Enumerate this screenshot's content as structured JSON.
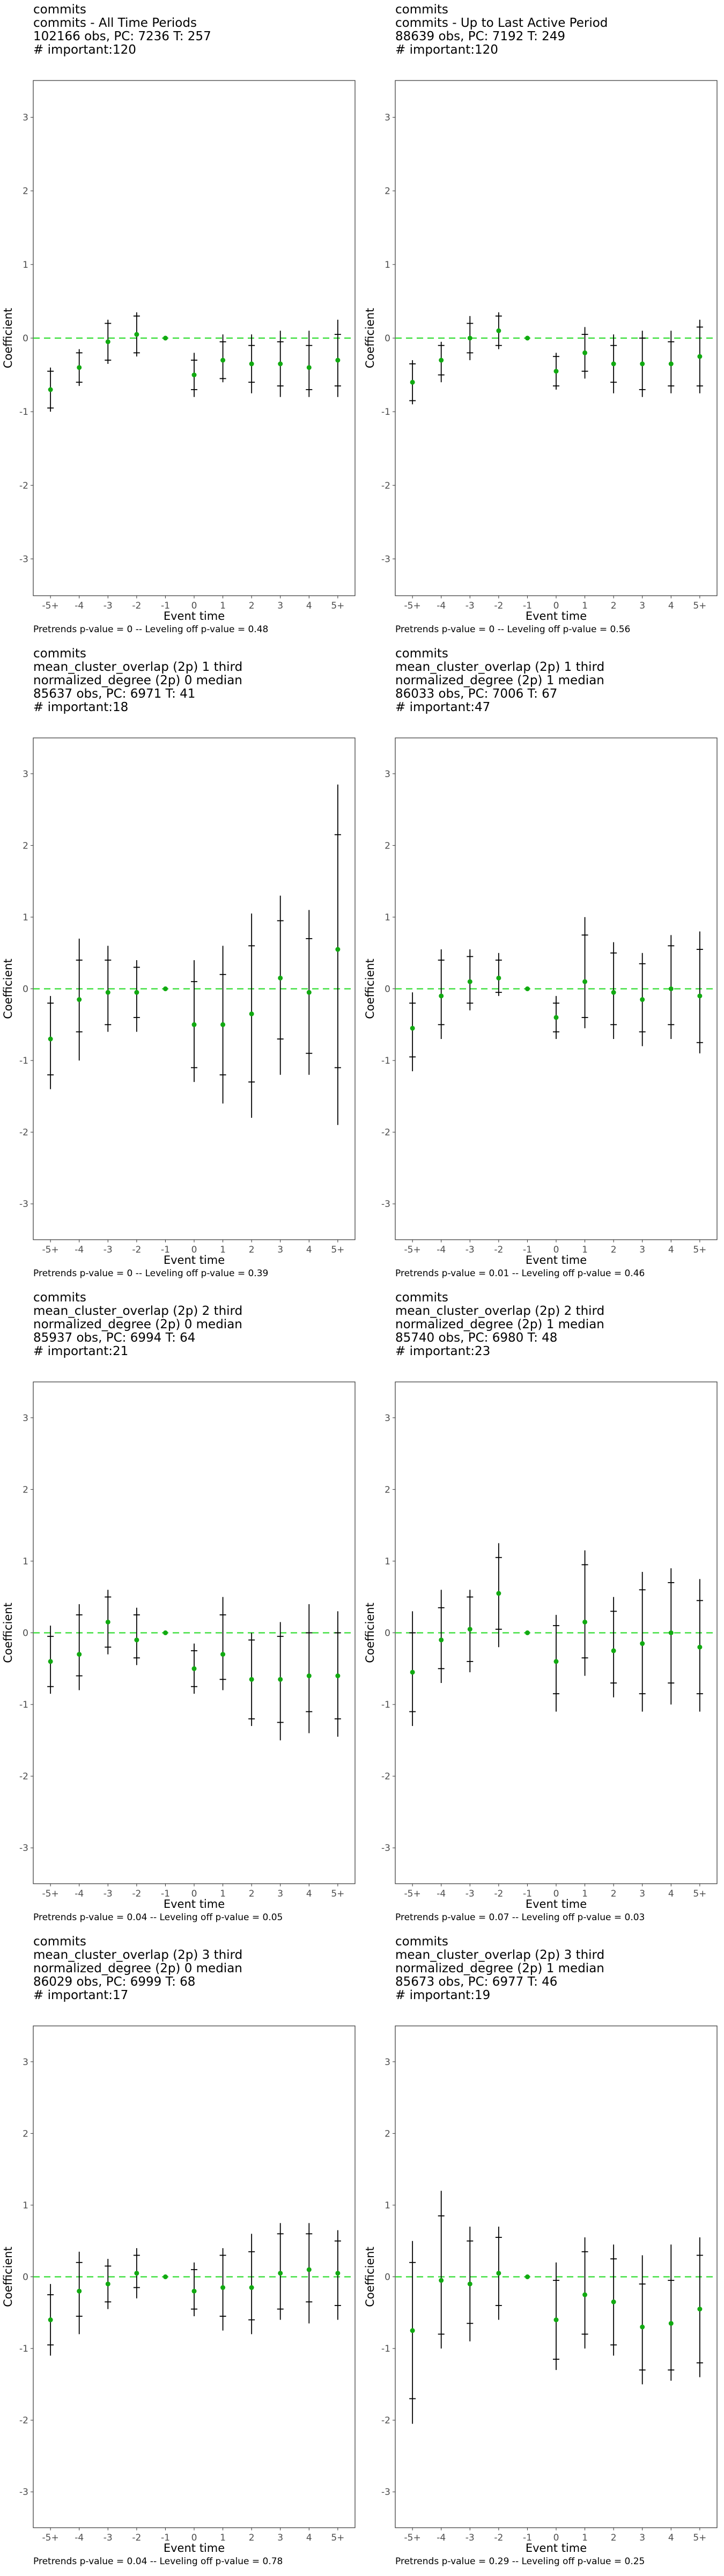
{
  "colors": {
    "refline": "#33dd33",
    "point": "#11aa11",
    "bar": "#000000",
    "frame": "#333333"
  },
  "xlabel": "Event time",
  "ylabel": "Coefficient",
  "chart_data": [
    {
      "type": "scatter",
      "title_lines": [
        "commits",
        "commits - All Time Periods",
        "102166 obs, PC: 7236 T: 257",
        "# important:120"
      ],
      "footer": "Pretrends p-value = 0 -- Leveling off p-value = 0.48",
      "categories": [
        "-5+",
        "-4",
        "-3",
        "-2",
        "-1",
        "0",
        "1",
        "2",
        "3",
        "4",
        "5+"
      ],
      "coef": [
        -0.7,
        -0.4,
        -0.05,
        0.05,
        0,
        -0.5,
        -0.3,
        -0.35,
        -0.35,
        -0.4,
        -0.3
      ],
      "ci90": [
        [
          -0.95,
          -0.45
        ],
        [
          -0.6,
          -0.2
        ],
        [
          -0.3,
          0.2
        ],
        [
          -0.2,
          0.3
        ],
        [
          0,
          0
        ],
        [
          -0.7,
          -0.3
        ],
        [
          -0.55,
          -0.05
        ],
        [
          -0.6,
          -0.1
        ],
        [
          -0.65,
          -0.05
        ],
        [
          -0.7,
          -0.1
        ],
        [
          -0.65,
          0.05
        ]
      ],
      "ci95": [
        [
          -1.0,
          -0.4
        ],
        [
          -0.65,
          -0.15
        ],
        [
          -0.35,
          0.25
        ],
        [
          -0.25,
          0.35
        ],
        [
          0,
          0
        ],
        [
          -0.8,
          -0.2
        ],
        [
          -0.6,
          0.05
        ],
        [
          -0.75,
          0.05
        ],
        [
          -0.8,
          0.1
        ],
        [
          -0.8,
          0.1
        ],
        [
          -0.8,
          0.25
        ]
      ],
      "ylim": [
        -3.5,
        3.5
      ],
      "yticks": [
        -3,
        -2,
        -1,
        0,
        1,
        2,
        3
      ]
    },
    {
      "type": "scatter",
      "title_lines": [
        "commits",
        "commits - Up to Last Active Period",
        "88639 obs, PC: 7192 T: 249",
        "# important:120"
      ],
      "footer": "Pretrends p-value = 0 -- Leveling off p-value = 0.56",
      "categories": [
        "-5+",
        "-4",
        "-3",
        "-2",
        "-1",
        "0",
        "1",
        "2",
        "3",
        "4",
        "5+"
      ],
      "coef": [
        -0.6,
        -0.3,
        0,
        0.1,
        0,
        -0.45,
        -0.2,
        -0.35,
        -0.35,
        -0.35,
        -0.25
      ],
      "ci90": [
        [
          -0.85,
          -0.35
        ],
        [
          -0.5,
          -0.1
        ],
        [
          -0.2,
          0.2
        ],
        [
          -0.1,
          0.3
        ],
        [
          0,
          0
        ],
        [
          -0.65,
          -0.25
        ],
        [
          -0.45,
          0.05
        ],
        [
          -0.6,
          -0.1
        ],
        [
          -0.7,
          0
        ],
        [
          -0.65,
          -0.05
        ],
        [
          -0.65,
          0.15
        ]
      ],
      "ci95": [
        [
          -0.9,
          -0.3
        ],
        [
          -0.6,
          -0.05
        ],
        [
          -0.3,
          0.3
        ],
        [
          -0.15,
          0.35
        ],
        [
          0,
          0
        ],
        [
          -0.7,
          -0.2
        ],
        [
          -0.55,
          0.15
        ],
        [
          -0.75,
          0.05
        ],
        [
          -0.8,
          0.1
        ],
        [
          -0.75,
          0.1
        ],
        [
          -0.75,
          0.25
        ]
      ],
      "ylim": [
        -3.5,
        3.5
      ],
      "yticks": [
        -3,
        -2,
        -1,
        0,
        1,
        2,
        3
      ]
    },
    {
      "type": "scatter",
      "title_lines": [
        "commits",
        "mean_cluster_overlap (2p) 1 third",
        "normalized_degree (2p) 0 median",
        "85637 obs, PC: 6971 T: 41",
        "# important:18"
      ],
      "footer": "Pretrends p-value = 0 -- Leveling off p-value = 0.39",
      "categories": [
        "-5+",
        "-4",
        "-3",
        "-2",
        "-1",
        "0",
        "1",
        "2",
        "3",
        "4",
        "5+"
      ],
      "coef": [
        -0.7,
        -0.15,
        -0.05,
        -0.05,
        0,
        -0.5,
        -0.5,
        -0.35,
        0.15,
        -0.05,
        0.55
      ],
      "ci90": [
        [
          -1.2,
          -0.2
        ],
        [
          -0.6,
          0.4
        ],
        [
          -0.5,
          0.4
        ],
        [
          -0.4,
          0.3
        ],
        [
          0,
          0
        ],
        [
          -1.1,
          0.1
        ],
        [
          -1.2,
          0.2
        ],
        [
          -1.3,
          0.6
        ],
        [
          -0.7,
          0.95
        ],
        [
          -0.9,
          0.7
        ],
        [
          -1.1,
          2.15
        ]
      ],
      "ci95": [
        [
          -1.4,
          -0.1
        ],
        [
          -1.0,
          0.7
        ],
        [
          -0.6,
          0.6
        ],
        [
          -0.6,
          0.4
        ],
        [
          0,
          0
        ],
        [
          -1.3,
          0.4
        ],
        [
          -1.6,
          0.6
        ],
        [
          -1.8,
          1.05
        ],
        [
          -1.2,
          1.3
        ],
        [
          -1.2,
          1.1
        ],
        [
          -1.9,
          2.85
        ]
      ],
      "ylim": [
        -3.5,
        3.5
      ],
      "yticks": [
        -3,
        -2,
        -1,
        0,
        1,
        2,
        3
      ]
    },
    {
      "type": "scatter",
      "title_lines": [
        "commits",
        "mean_cluster_overlap (2p) 1 third",
        "normalized_degree (2p) 1 median",
        "86033 obs, PC: 7006 T: 67",
        "# important:47"
      ],
      "footer": "Pretrends p-value = 0.01 -- Leveling off p-value = 0.46",
      "categories": [
        "-5+",
        "-4",
        "-3",
        "-2",
        "-1",
        "0",
        "1",
        "2",
        "3",
        "4",
        "5+"
      ],
      "coef": [
        -0.55,
        -0.1,
        0.1,
        0.15,
        0,
        -0.4,
        0.1,
        -0.05,
        -0.15,
        0,
        -0.1
      ],
      "ci90": [
        [
          -0.95,
          -0.2
        ],
        [
          -0.5,
          0.4
        ],
        [
          -0.2,
          0.45
        ],
        [
          -0.05,
          0.4
        ],
        [
          0,
          0
        ],
        [
          -0.6,
          -0.2
        ],
        [
          -0.4,
          0.75
        ],
        [
          -0.5,
          0.5
        ],
        [
          -0.6,
          0.35
        ],
        [
          -0.5,
          0.6
        ],
        [
          -0.75,
          0.55
        ]
      ],
      "ci95": [
        [
          -1.15,
          -0.05
        ],
        [
          -0.7,
          0.55
        ],
        [
          -0.3,
          0.55
        ],
        [
          -0.1,
          0.5
        ],
        [
          0,
          0
        ],
        [
          -0.7,
          -0.1
        ],
        [
          -0.55,
          1.0
        ],
        [
          -0.7,
          0.65
        ],
        [
          -0.8,
          0.5
        ],
        [
          -0.7,
          0.75
        ],
        [
          -0.9,
          0.8
        ]
      ],
      "ylim": [
        -3.5,
        3.5
      ],
      "yticks": [
        -3,
        -2,
        -1,
        0,
        1,
        2,
        3
      ]
    },
    {
      "type": "scatter",
      "title_lines": [
        "commits",
        "mean_cluster_overlap (2p) 2 third",
        "normalized_degree (2p) 0 median",
        "85937 obs, PC: 6994 T: 64",
        "# important:21"
      ],
      "footer": "Pretrends p-value = 0.04 -- Leveling off p-value = 0.05",
      "categories": [
        "-5+",
        "-4",
        "-3",
        "-2",
        "-1",
        "0",
        "1",
        "2",
        "3",
        "4",
        "5+"
      ],
      "coef": [
        -0.4,
        -0.3,
        0.15,
        -0.1,
        0,
        -0.5,
        -0.3,
        -0.65,
        -0.65,
        -0.6,
        -0.6
      ],
      "ci90": [
        [
          -0.75,
          -0.05
        ],
        [
          -0.6,
          0.25
        ],
        [
          -0.2,
          0.5
        ],
        [
          -0.35,
          0.25
        ],
        [
          0,
          0
        ],
        [
          -0.75,
          -0.25
        ],
        [
          -0.65,
          0.25
        ],
        [
          -1.2,
          -0.1
        ],
        [
          -1.25,
          -0.05
        ],
        [
          -1.1,
          0.0
        ],
        [
          -1.2,
          0.0
        ]
      ],
      "ci95": [
        [
          -0.85,
          0.1
        ],
        [
          -0.8,
          0.4
        ],
        [
          -0.3,
          0.6
        ],
        [
          -0.45,
          0.35
        ],
        [
          0,
          0
        ],
        [
          -0.85,
          -0.15
        ],
        [
          -0.8,
          0.5
        ],
        [
          -1.3,
          0.0
        ],
        [
          -1.5,
          0.15
        ],
        [
          -1.4,
          0.4
        ],
        [
          -1.45,
          0.3
        ]
      ],
      "ylim": [
        -3.5,
        3.5
      ],
      "yticks": [
        -3,
        -2,
        -1,
        0,
        1,
        2,
        3
      ]
    },
    {
      "type": "scatter",
      "title_lines": [
        "commits",
        "mean_cluster_overlap (2p) 2 third",
        "normalized_degree (2p) 1 median",
        "85740 obs, PC: 6980 T: 48",
        "# important:23"
      ],
      "footer": "Pretrends p-value = 0.07 -- Leveling off p-value = 0.03",
      "categories": [
        "-5+",
        "-4",
        "-3",
        "-2",
        "-1",
        "0",
        "1",
        "2",
        "3",
        "4",
        "5+"
      ],
      "coef": [
        -0.55,
        -0.1,
        0.05,
        0.55,
        0,
        -0.4,
        0.15,
        -0.25,
        -0.15,
        0,
        -0.2
      ],
      "ci90": [
        [
          -1.1,
          0.0
        ],
        [
          -0.5,
          0.35
        ],
        [
          -0.4,
          0.5
        ],
        [
          0.05,
          1.05
        ],
        [
          0,
          0
        ],
        [
          -0.85,
          0.1
        ],
        [
          -0.35,
          0.95
        ],
        [
          -0.7,
          0.3
        ],
        [
          -0.85,
          0.6
        ],
        [
          -0.7,
          0.7
        ],
        [
          -0.85,
          0.45
        ]
      ],
      "ci95": [
        [
          -1.3,
          0.3
        ],
        [
          -0.7,
          0.6
        ],
        [
          -0.55,
          0.6
        ],
        [
          -0.2,
          1.25
        ],
        [
          0,
          0
        ],
        [
          -1.1,
          0.25
        ],
        [
          -0.6,
          1.15
        ],
        [
          -0.9,
          0.5
        ],
        [
          -1.1,
          0.85
        ],
        [
          -1.0,
          0.9
        ],
        [
          -1.1,
          0.75
        ]
      ],
      "ylim": [
        -3.5,
        3.5
      ],
      "yticks": [
        -3,
        -2,
        -1,
        0,
        1,
        2,
        3
      ]
    },
    {
      "type": "scatter",
      "title_lines": [
        "commits",
        "mean_cluster_overlap (2p) 3 third",
        "normalized_degree (2p) 0 median",
        "86029 obs, PC: 6999 T: 68",
        "# important:17"
      ],
      "footer": "Pretrends p-value = 0.04 -- Leveling off p-value = 0.78",
      "categories": [
        "-5+",
        "-4",
        "-3",
        "-2",
        "-1",
        "0",
        "1",
        "2",
        "3",
        "4",
        "5+"
      ],
      "coef": [
        -0.6,
        -0.2,
        -0.1,
        0.05,
        0,
        -0.2,
        -0.15,
        -0.15,
        0.05,
        0.1,
        0.05
      ],
      "ci90": [
        [
          -0.95,
          -0.25
        ],
        [
          -0.55,
          0.2
        ],
        [
          -0.35,
          0.15
        ],
        [
          -0.15,
          0.3
        ],
        [
          0,
          0
        ],
        [
          -0.45,
          0.1
        ],
        [
          -0.55,
          0.3
        ],
        [
          -0.6,
          0.35
        ],
        [
          -0.45,
          0.6
        ],
        [
          -0.35,
          0.6
        ],
        [
          -0.4,
          0.5
        ]
      ],
      "ci95": [
        [
          -1.1,
          -0.1
        ],
        [
          -0.8,
          0.35
        ],
        [
          -0.45,
          0.25
        ],
        [
          -0.3,
          0.4
        ],
        [
          0,
          0
        ],
        [
          -0.55,
          0.2
        ],
        [
          -0.75,
          0.4
        ],
        [
          -0.8,
          0.6
        ],
        [
          -0.6,
          0.75
        ],
        [
          -0.65,
          0.75
        ],
        [
          -0.6,
          0.65
        ]
      ],
      "ylim": [
        -3.5,
        3.5
      ],
      "yticks": [
        -3,
        -2,
        -1,
        0,
        1,
        2,
        3
      ]
    },
    {
      "type": "scatter",
      "title_lines": [
        "commits",
        "mean_cluster_overlap (2p) 3 third",
        "normalized_degree (2p) 1 median",
        "85673 obs, PC: 6977 T: 46",
        "# important:19"
      ],
      "footer": "Pretrends p-value = 0.29 -- Leveling off p-value = 0.25",
      "categories": [
        "-5+",
        "-4",
        "-3",
        "-2",
        "-1",
        "0",
        "1",
        "2",
        "3",
        "4",
        "5+"
      ],
      "coef": [
        -0.75,
        -0.05,
        -0.1,
        0.05,
        0,
        -0.6,
        -0.25,
        -0.35,
        -0.7,
        -0.65,
        -0.45
      ],
      "ci90": [
        [
          -1.7,
          0.2
        ],
        [
          -0.8,
          0.85
        ],
        [
          -0.65,
          0.5
        ],
        [
          -0.4,
          0.55
        ],
        [
          0,
          0
        ],
        [
          -1.15,
          -0.05
        ],
        [
          -0.8,
          0.35
        ],
        [
          -0.95,
          0.25
        ],
        [
          -1.3,
          -0.1
        ],
        [
          -1.3,
          -0.05
        ],
        [
          -1.2,
          0.3
        ]
      ],
      "ci95": [
        [
          -2.05,
          0.5
        ],
        [
          -1.0,
          1.2
        ],
        [
          -0.9,
          0.7
        ],
        [
          -0.6,
          0.7
        ],
        [
          0,
          0
        ],
        [
          -1.3,
          0.2
        ],
        [
          -1.0,
          0.55
        ],
        [
          -1.1,
          0.45
        ],
        [
          -1.5,
          0.3
        ],
        [
          -1.45,
          0.45
        ],
        [
          -1.4,
          0.55
        ]
      ],
      "ylim": [
        -3.5,
        3.5
      ],
      "yticks": [
        -3,
        -2,
        -1,
        0,
        1,
        2,
        3
      ]
    }
  ]
}
